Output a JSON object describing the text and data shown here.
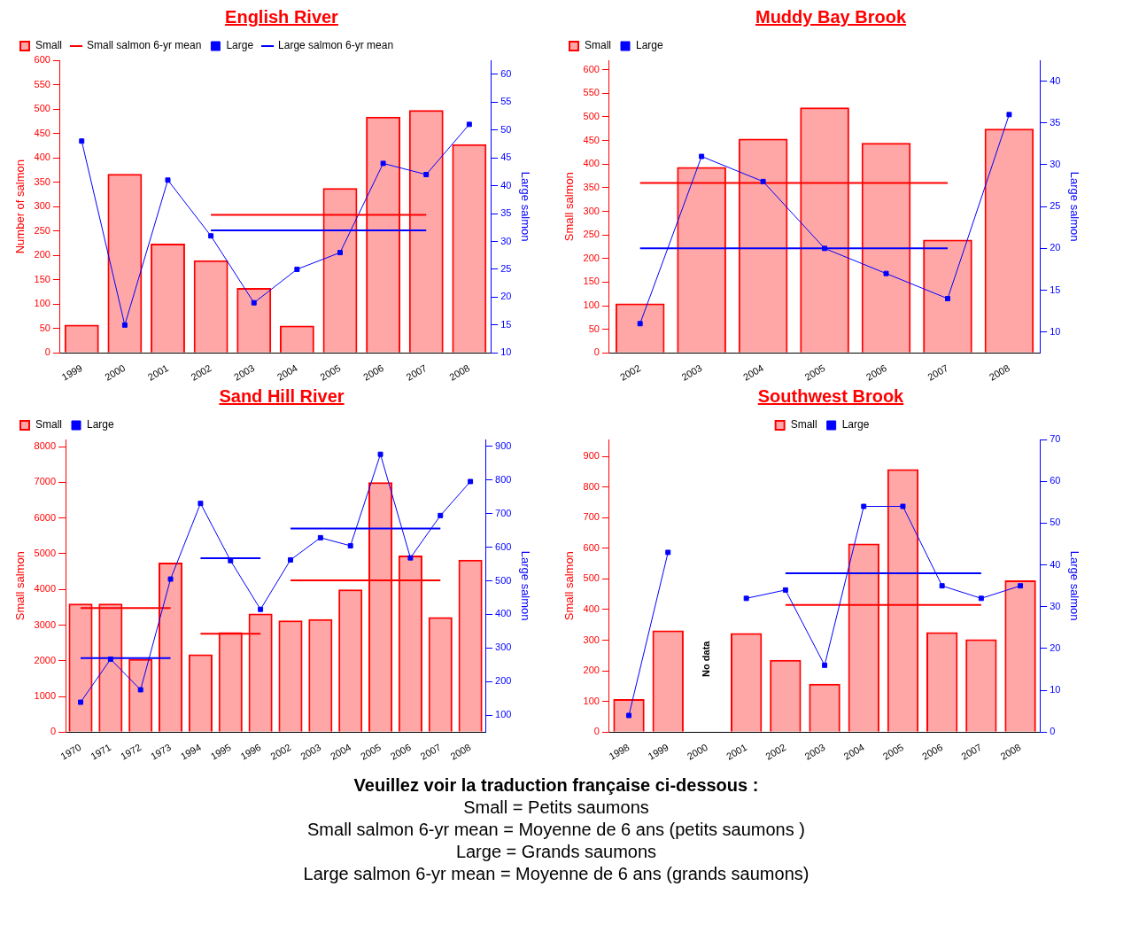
{
  "chart_data": [
    {
      "type": "bar",
      "title": "English River",
      "ylabel": "Number of salmon",
      "y2label": "Large salmon",
      "categories": [
        "1999",
        "2000",
        "2001",
        "2002",
        "2003",
        "2004",
        "2005",
        "2006",
        "2007",
        "2008"
      ],
      "ylim": [
        0,
        600
      ],
      "yticks": [
        0,
        50,
        100,
        150,
        200,
        250,
        300,
        350,
        400,
        450,
        500,
        550,
        600
      ],
      "y2lim": [
        10,
        62.5
      ],
      "y2ticks": [
        10,
        15,
        20,
        25,
        30,
        35,
        40,
        45,
        50,
        55,
        60
      ],
      "legend": "top left",
      "series": [
        {
          "name": "Small",
          "type": "bar",
          "color": "#ff0000",
          "values": [
            58,
            367,
            224,
            190,
            133,
            56,
            338,
            484,
            498,
            428
          ]
        },
        {
          "name": "Small salmon 6-yr mean",
          "type": "line",
          "color": "#ff0000",
          "marker": "none",
          "values": [
            null,
            null,
            null,
            283,
            283,
            283,
            283,
            283,
            283,
            null
          ]
        },
        {
          "name": "Large",
          "type": "line",
          "axis": "y2",
          "color": "#0000ff",
          "marker": "square",
          "values": [
            48,
            15,
            41,
            31,
            19,
            25,
            28,
            44,
            42,
            51
          ]
        },
        {
          "name": "Large salmon 6-yr mean",
          "type": "line",
          "axis": "y2",
          "color": "#0000ff",
          "marker": "none",
          "values": [
            null,
            null,
            null,
            32,
            32,
            32,
            32,
            32,
            32,
            null
          ]
        }
      ]
    },
    {
      "type": "bar",
      "title": "Muddy Bay Brook",
      "ylabel": "Small salmon",
      "y2label": "Large salmon",
      "categories": [
        "2002",
        "2003",
        "2004",
        "2005",
        "2006",
        "2007",
        "2008"
      ],
      "ylim": [
        0,
        620
      ],
      "yticks": [
        0,
        50,
        100,
        150,
        200,
        250,
        300,
        350,
        400,
        450,
        500,
        550,
        600
      ],
      "y2lim": [
        7.5,
        42.5
      ],
      "y2ticks": [
        10,
        15,
        20,
        25,
        30,
        35,
        40
      ],
      "legend": "top left",
      "series": [
        {
          "name": "Small",
          "type": "bar",
          "color": "#ff0000",
          "values": [
            105,
            394,
            454,
            520,
            445,
            240,
            475
          ]
        },
        {
          "name": "Large",
          "type": "line",
          "axis": "y2",
          "color": "#0000ff",
          "marker": "square",
          "values": [
            11,
            31,
            28,
            20,
            17,
            14,
            36
          ]
        },
        {
          "type": "line",
          "color": "#ff0000",
          "marker": "none",
          "values": [
            360,
            360,
            360,
            360,
            360,
            360,
            null
          ]
        },
        {
          "type": "line",
          "axis": "y2",
          "color": "#0000ff",
          "marker": "none",
          "values": [
            20,
            20,
            20,
            20,
            20,
            20,
            null
          ]
        }
      ]
    },
    {
      "type": "bar",
      "title": "Sand Hill River",
      "ylabel": "Small salmon",
      "y2label": "Large salmon",
      "categories": [
        "1970",
        "1971",
        "1972",
        "1973",
        "1994",
        "1995",
        "1996",
        "2002",
        "2003",
        "2004",
        "2005",
        "2006",
        "2007",
        "2008"
      ],
      "ylim": [
        0,
        8200
      ],
      "yticks": [
        0,
        1000,
        2000,
        3000,
        4000,
        5000,
        6000,
        7000,
        8000
      ],
      "y2lim": [
        50,
        920
      ],
      "y2ticks": [
        100,
        200,
        300,
        400,
        500,
        600,
        700,
        800,
        900
      ],
      "legend": "top left",
      "series": [
        {
          "name": "Small",
          "type": "bar",
          "color": "#ff0000",
          "values": [
            3600,
            3600,
            2050,
            4750,
            2180,
            2800,
            3320,
            3130,
            3170,
            4000,
            7000,
            4950,
            3220,
            4830
          ]
        },
        {
          "name": "Large",
          "type": "line",
          "axis": "y2",
          "color": "#0000ff",
          "marker": "square",
          "values": [
            139,
            267,
            176,
            505,
            730,
            560,
            415,
            562,
            628,
            604,
            876,
            568,
            694,
            795
          ]
        },
        {
          "type": "line",
          "color": "#ff0000",
          "marker": "none",
          "values": [
            3480,
            3480,
            3480,
            3480,
            null,
            null,
            null,
            null,
            null,
            null,
            null,
            null,
            null,
            null
          ]
        },
        {
          "type": "line",
          "color": "#ff0000",
          "marker": "none",
          "values": [
            null,
            null,
            null,
            null,
            2760,
            2760,
            2760,
            null,
            null,
            null,
            null,
            null,
            null,
            null
          ]
        },
        {
          "type": "line",
          "color": "#ff0000",
          "marker": "none",
          "values": [
            null,
            null,
            null,
            null,
            null,
            null,
            null,
            4250,
            4250,
            4250,
            4250,
            4250,
            4250,
            null
          ]
        },
        {
          "type": "line",
          "axis": "y2",
          "color": "#0000ff",
          "marker": "none",
          "values": [
            270,
            270,
            270,
            270,
            null,
            null,
            null,
            null,
            null,
            null,
            null,
            null,
            null,
            null
          ]
        },
        {
          "type": "line",
          "axis": "y2",
          "color": "#0000ff",
          "marker": "none",
          "values": [
            null,
            null,
            null,
            null,
            567,
            567,
            567,
            null,
            null,
            null,
            null,
            null,
            null,
            null
          ]
        },
        {
          "type": "line",
          "axis": "y2",
          "color": "#0000ff",
          "marker": "none",
          "values": [
            null,
            null,
            null,
            null,
            null,
            null,
            null,
            655,
            655,
            655,
            655,
            655,
            655,
            null
          ]
        }
      ]
    },
    {
      "type": "bar",
      "title": "Southwest Brook",
      "ylabel": "Small salmon",
      "y2label": "Large salmon",
      "categories": [
        "1998",
        "1999",
        "2000",
        "2001",
        "2002",
        "2003",
        "2004",
        "2005",
        "2006",
        "2007",
        "2008"
      ],
      "ylim": [
        0,
        955
      ],
      "yticks": [
        0,
        100,
        200,
        300,
        400,
        500,
        600,
        700,
        800,
        900
      ],
      "y2lim": [
        0,
        70
      ],
      "y2ticks": [
        0,
        10,
        20,
        30,
        40,
        50,
        60,
        70
      ],
      "legend": "top",
      "annotations": [
        "No data"
      ],
      "series": [
        {
          "name": "Small",
          "type": "bar",
          "color": "#ff0000",
          "values": [
            108,
            332,
            null,
            323,
            236,
            158,
            615,
            858,
            326,
            303,
            495
          ]
        },
        {
          "name": "Large",
          "type": "line",
          "axis": "y2",
          "color": "#0000ff",
          "marker": "square",
          "values": [
            4,
            43,
            null,
            32,
            34,
            16,
            54,
            54,
            35,
            32,
            35
          ]
        },
        {
          "type": "line",
          "color": "#ff0000",
          "marker": "none",
          "values": [
            null,
            null,
            null,
            null,
            415,
            415,
            415,
            415,
            415,
            415,
            null
          ]
        },
        {
          "type": "line",
          "axis": "y2",
          "color": "#0000ff",
          "marker": "none",
          "values": [
            null,
            null,
            null,
            null,
            38,
            38,
            38,
            38,
            38,
            38,
            null
          ]
        }
      ]
    },
    {
      "type": "other",
      "title": "Veuillez voir la traduction française ci-dessous :",
      "annotations": [
        "Small = Petits saumons",
        "Small salmon 6-yr mean = Moyenne de 6 ans (petits saumons )",
        "Large = Grands saumons",
        "Large salmon 6-yr mean = Moyenne de 6 ans (grands saumons)"
      ]
    }
  ]
}
